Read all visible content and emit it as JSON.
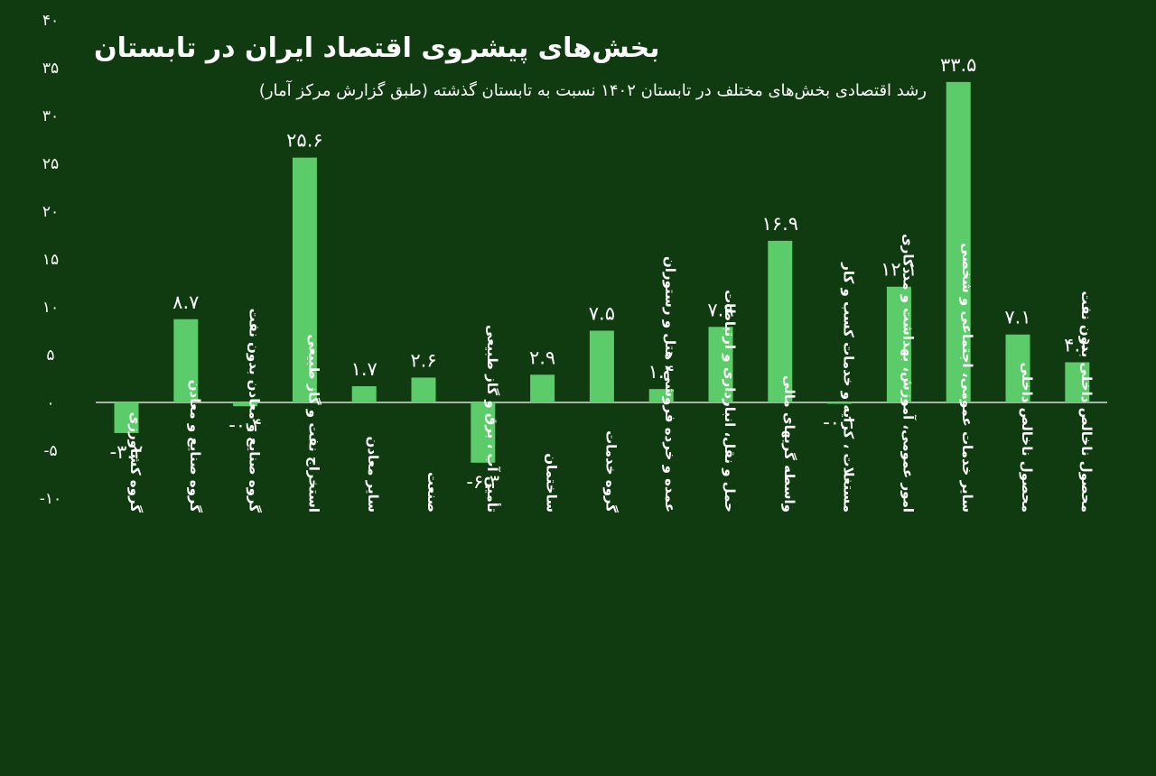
{
  "chart_data": {
    "type": "bar",
    "title": "بخش‌های پیشروی اقتصاد ایران در تابستان",
    "subtitle": "رشد اقتصادی بخش‌های مختلف در تابستان ۱۴۰۲ نسبت به تابستان گذشته (طبق گزارش مرکز آمار)",
    "xlabel": "",
    "ylabel": "",
    "ylim": [
      -10,
      40
    ],
    "yticks": [
      40,
      35,
      30,
      25,
      20,
      15,
      10,
      5,
      0,
      -5,
      -10
    ],
    "ytick_labels": [
      "۴۰",
      "۳۵",
      "۳۰",
      "۲۵",
      "۲۰",
      "۱۵",
      "۱۰",
      "۵",
      "۰",
      "-۵",
      "-۱۰"
    ],
    "grid": false,
    "legend": "none",
    "colors": {
      "background": "#103a10",
      "bar": "#5ccc6a",
      "text": "#ffffff"
    },
    "categories": [
      "گروه کشاورزی",
      "گروه صنایع و معادن",
      "گروه صنایع و معادن بدون نفت",
      "استخراج نفت و گاز طبیعی",
      "سایر معادن",
      "صنعت",
      "تأمین آب ، برق و گاز طبیعی",
      "ساختمان",
      "گروه خدمات",
      "عمده و خرده فروشی، هتل و رستوران",
      "حمل و نقل، انبارداری و ارتباطات",
      "واسطه گریهای مالی",
      "مستغلات ، کرایه و خدمات کسب و کار",
      "امور عمومی، آموزش، بهداشت و مددکاری",
      "سایر خدمات عمومی، اجتماعی و شخصی",
      "محصول ناخالص داخلی",
      "محصول ناخالص داخلی بدون نفت"
    ],
    "values": [
      -3.2,
      8.7,
      -0.4,
      25.6,
      1.7,
      2.6,
      -6.3,
      2.9,
      7.5,
      1.4,
      7.9,
      16.9,
      -0.1,
      12.1,
      33.5,
      7.1,
      4.2
    ],
    "value_labels": [
      "-۳.۲",
      "۸.۷",
      "-۰.۴",
      "۲۵.۶",
      "۱.۷",
      "۲.۶",
      "-۶.۳",
      "۲.۹",
      "۷.۵",
      "۱.۴",
      "۷.۹",
      "۱۶.۹",
      "-۰.۱",
      "۱۲.۱",
      "۳۳.۵",
      "۷.۱",
      "۴.۲"
    ]
  }
}
